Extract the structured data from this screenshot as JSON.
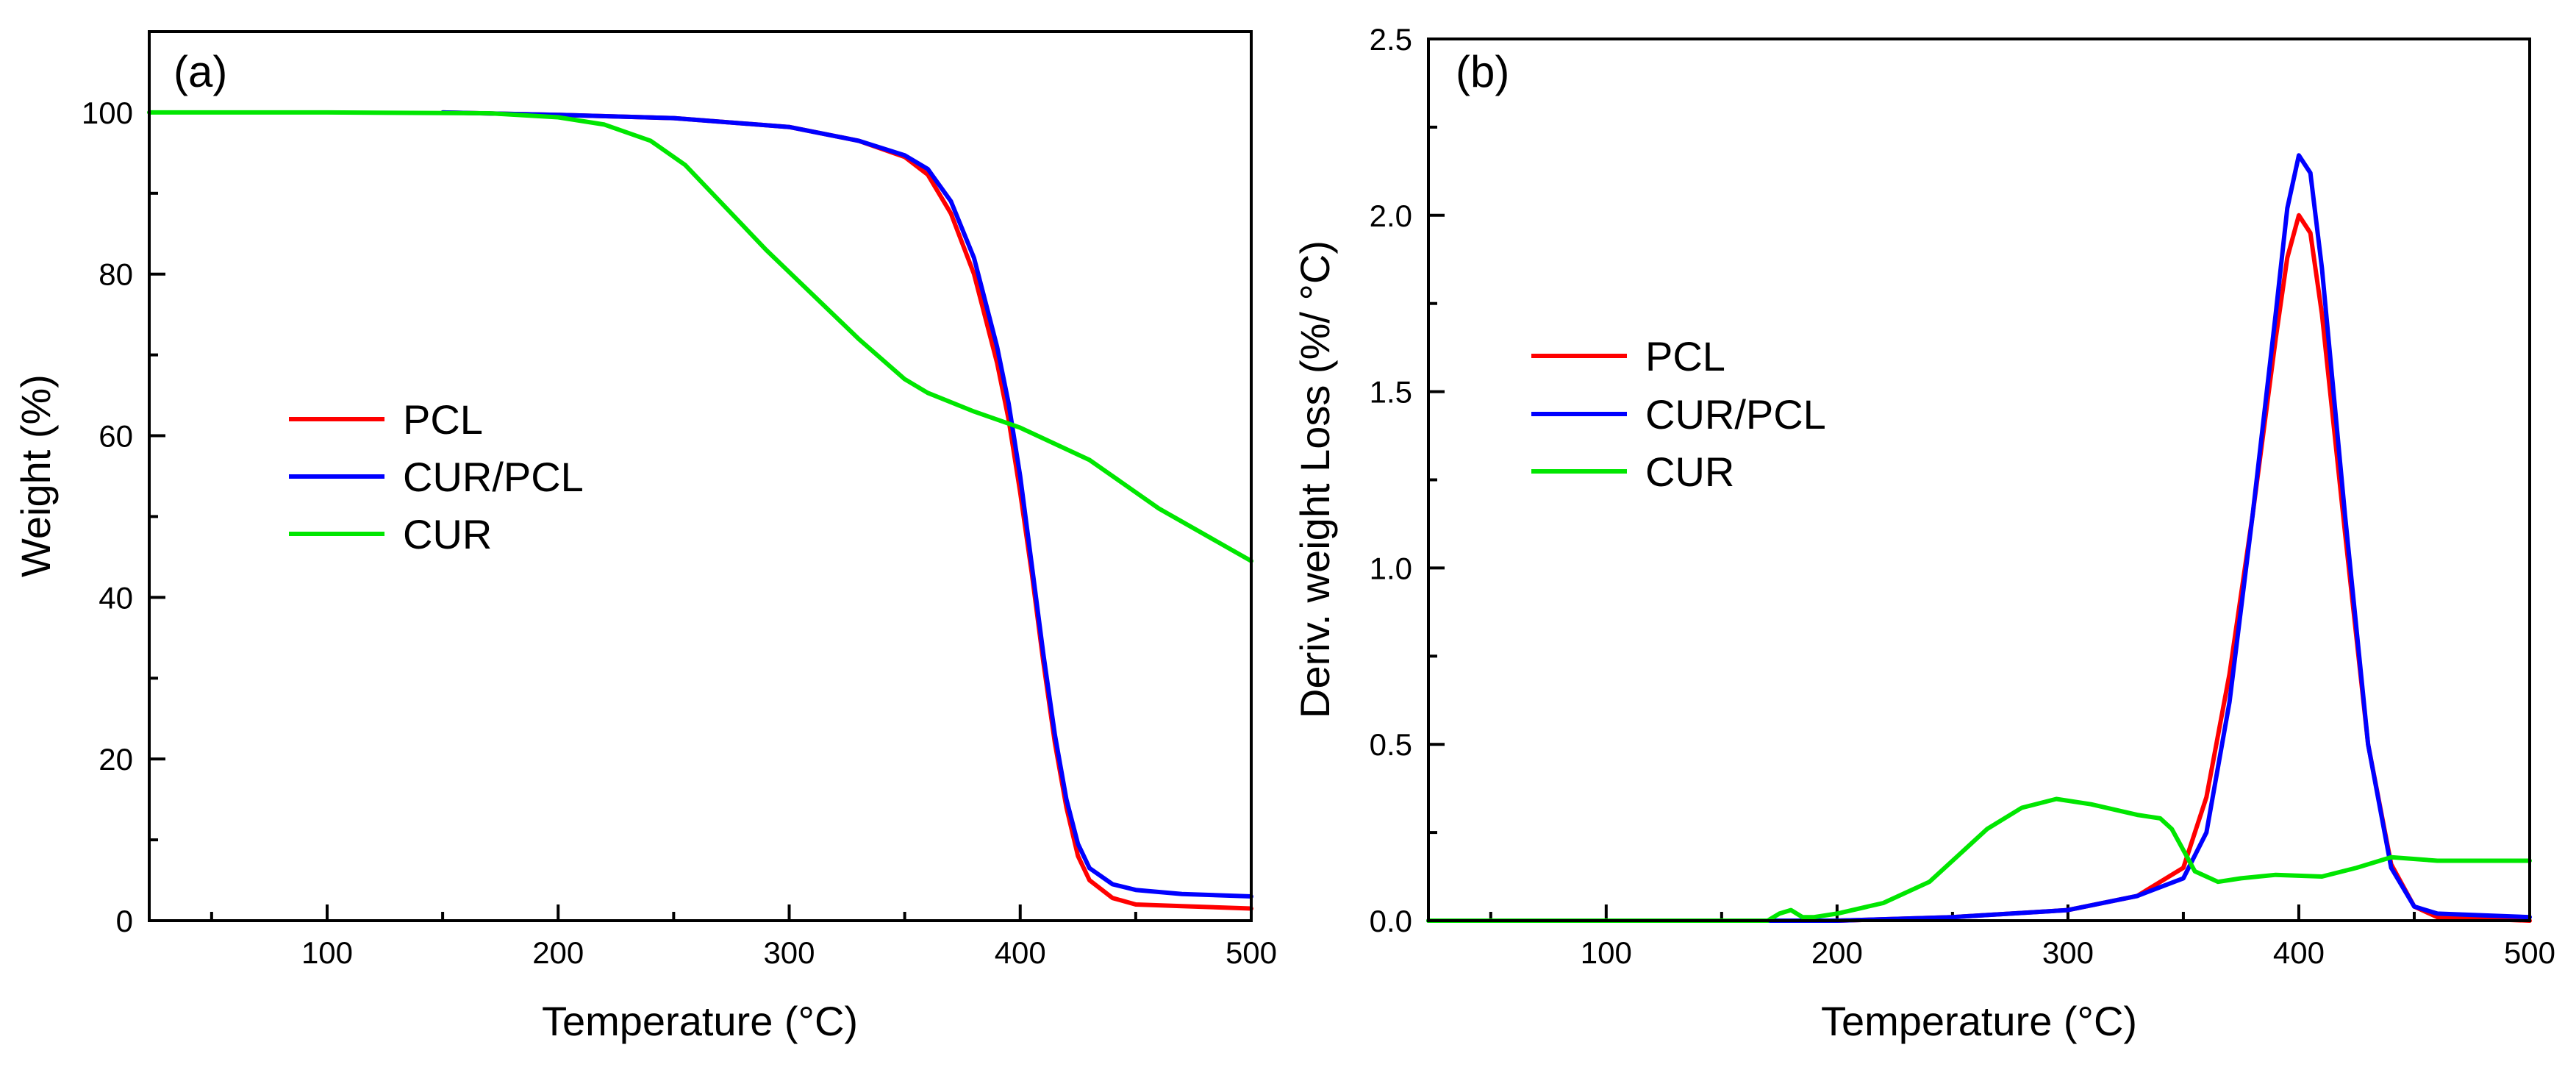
{
  "chart_data": [
    {
      "type": "line",
      "panel_label": "(a)",
      "title": "",
      "xlabel": "Temperature (°C)",
      "ylabel": "Weight (%)",
      "xlim": [
        23,
        500
      ],
      "ylim": [
        0,
        110
      ],
      "xticks": [
        100,
        200,
        300,
        400,
        500
      ],
      "xtick_labels": [
        "100",
        "200",
        "300",
        "400",
        "500"
      ],
      "xminor": [
        50,
        150,
        250,
        350,
        450
      ],
      "yticks": [
        0,
        20,
        40,
        60,
        80,
        100
      ],
      "ytick_labels": [
        "0",
        "20",
        "40",
        "60",
        "80",
        "100"
      ],
      "yminor": [
        10,
        30,
        50,
        70,
        90
      ],
      "grid": false,
      "legend_position": "center-left",
      "series": [
        {
          "name": "PCL",
          "color": "#ff0000",
          "x": [
            150,
            200,
            250,
            300,
            330,
            350,
            360,
            370,
            380,
            390,
            395,
            400,
            405,
            410,
            415,
            420,
            425,
            430,
            440,
            450,
            470,
            500
          ],
          "y": [
            100,
            99.7,
            99.3,
            98.2,
            96.5,
            94.5,
            92.3,
            87.5,
            80.0,
            69.0,
            62.0,
            53.0,
            43.0,
            32.0,
            22.0,
            14.0,
            8.0,
            5.0,
            2.8,
            2.0,
            1.8,
            1.5
          ]
        },
        {
          "name": "CUR/PCL",
          "color": "#0000ff",
          "x": [
            150,
            200,
            250,
            300,
            330,
            350,
            360,
            370,
            380,
            390,
            395,
            400,
            405,
            410,
            415,
            420,
            425,
            430,
            440,
            450,
            470,
            500
          ],
          "y": [
            100,
            99.7,
            99.3,
            98.2,
            96.5,
            94.7,
            93.0,
            89.0,
            82.0,
            71.0,
            64.0,
            55.0,
            44.0,
            33.0,
            23.0,
            15.0,
            9.5,
            6.5,
            4.5,
            3.8,
            3.3,
            3.0
          ]
        },
        {
          "name": "CUR",
          "color": "#00e600",
          "x": [
            23,
            100,
            170,
            200,
            220,
            240,
            255,
            270,
            290,
            310,
            330,
            350,
            360,
            380,
            400,
            430,
            460,
            500
          ],
          "y": [
            100,
            100,
            99.9,
            99.4,
            98.5,
            96.5,
            93.5,
            89.0,
            83.0,
            77.5,
            72.0,
            67.0,
            65.3,
            63.0,
            61.0,
            57.0,
            51.0,
            44.5
          ]
        }
      ]
    },
    {
      "type": "line",
      "panel_label": "(b)",
      "title": "",
      "xlabel": "Temperature (°C)",
      "ylabel": "Deriv. weight Loss (%/ °C)",
      "xlim": [
        23,
        500
      ],
      "ylim": [
        0,
        2.5
      ],
      "xticks": [
        100,
        200,
        300,
        400,
        500
      ],
      "xtick_labels": [
        "100",
        "200",
        "300",
        "400",
        "500"
      ],
      "xminor": [
        50,
        150,
        250,
        350,
        450
      ],
      "yticks": [
        0.0,
        0.5,
        1.0,
        1.5,
        2.0,
        2.5
      ],
      "ytick_labels": [
        "0.0",
        "0.5",
        "1.0",
        "1.5",
        "2.0",
        "2.5"
      ],
      "yminor": [
        0.25,
        0.75,
        1.25,
        1.75,
        2.25
      ],
      "grid": false,
      "legend_position": "center-left",
      "series": [
        {
          "name": "PCL",
          "color": "#ff0000",
          "x": [
            23,
            200,
            250,
            300,
            330,
            350,
            360,
            370,
            380,
            390,
            395,
            400,
            405,
            410,
            420,
            430,
            440,
            450,
            460,
            500
          ],
          "y": [
            0,
            0.0,
            0.01,
            0.03,
            0.07,
            0.15,
            0.35,
            0.7,
            1.15,
            1.65,
            1.88,
            2.0,
            1.95,
            1.72,
            1.1,
            0.5,
            0.16,
            0.04,
            0.01,
            0.0
          ]
        },
        {
          "name": "CUR/PCL",
          "color": "#0000ff",
          "x": [
            23,
            200,
            250,
            300,
            330,
            350,
            360,
            370,
            380,
            390,
            395,
            400,
            405,
            410,
            420,
            430,
            440,
            450,
            460,
            500
          ],
          "y": [
            0,
            0.0,
            0.01,
            0.03,
            0.07,
            0.12,
            0.25,
            0.62,
            1.15,
            1.72,
            2.02,
            2.17,
            2.12,
            1.85,
            1.15,
            0.5,
            0.15,
            0.04,
            0.02,
            0.01
          ]
        },
        {
          "name": "CUR",
          "color": "#00e600",
          "x": [
            23,
            170,
            175,
            180,
            185,
            190,
            200,
            220,
            240,
            255,
            265,
            280,
            295,
            310,
            330,
            340,
            345,
            350,
            355,
            365,
            375,
            390,
            410,
            425,
            440,
            460,
            500
          ],
          "y": [
            0,
            0.0,
            0.02,
            0.03,
            0.01,
            0.01,
            0.02,
            0.05,
            0.11,
            0.2,
            0.26,
            0.32,
            0.345,
            0.33,
            0.3,
            0.29,
            0.26,
            0.2,
            0.14,
            0.11,
            0.12,
            0.13,
            0.125,
            0.15,
            0.18,
            0.17,
            0.17
          ]
        }
      ]
    }
  ]
}
